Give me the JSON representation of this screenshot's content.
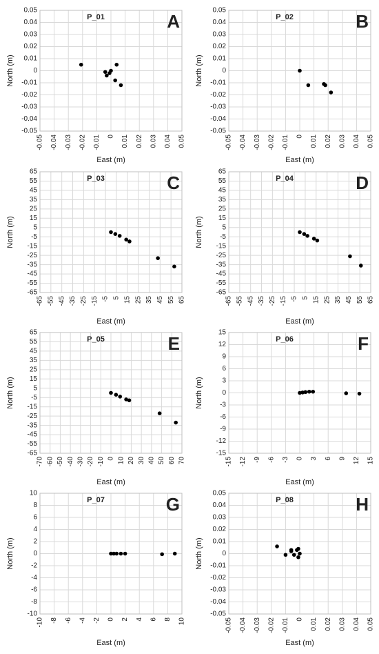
{
  "chart_data": [
    {
      "type": "scatter",
      "title": "P_01",
      "panel_letter": "A",
      "xlabel": "East (m)",
      "ylabel": "North (m)",
      "xlim": [
        -0.05,
        0.05
      ],
      "ylim": [
        -0.05,
        0.05
      ],
      "xticks": [
        "-0.05",
        "-0.04",
        "-0.03",
        "-0.02",
        "-0.01",
        "0",
        "0.01",
        "0.02",
        "0.03",
        "0.04",
        "0.05"
      ],
      "yticks": [
        "0.05",
        "0.04",
        "0.03",
        "0.02",
        "0.01",
        "0",
        "-0.01",
        "-0.02",
        "-0.03",
        "-0.04",
        "-0.05"
      ],
      "points": [
        [
          -0.021,
          0.005
        ],
        [
          -0.004,
          -0.001
        ],
        [
          -0.003,
          -0.004
        ],
        [
          -0.001,
          -0.002
        ],
        [
          0,
          0
        ],
        [
          0.004,
          0.005
        ],
        [
          0.003,
          -0.008
        ],
        [
          0.007,
          -0.012
        ]
      ],
      "grid": true
    },
    {
      "type": "scatter",
      "title": "P_02",
      "panel_letter": "B",
      "xlabel": "East (m)",
      "ylabel": "North (m)",
      "xlim": [
        -0.05,
        0.05
      ],
      "ylim": [
        -0.05,
        0.05
      ],
      "xticks": [
        "-0.05",
        "-0.04",
        "-0.03",
        "-0.02",
        "-0.01",
        "0",
        "0.01",
        "0.02",
        "0.03",
        "0.04",
        "0.05"
      ],
      "yticks": [
        "0.05",
        "0.04",
        "0.03",
        "0.02",
        "0.01",
        "0",
        "-0.01",
        "-0.02",
        "-0.03",
        "-0.04",
        "-0.05"
      ],
      "points": [
        [
          0,
          0
        ],
        [
          0.006,
          -0.012
        ],
        [
          0.017,
          -0.011
        ],
        [
          0.018,
          -0.012
        ],
        [
          0.022,
          -0.018
        ]
      ],
      "grid": true
    },
    {
      "type": "scatter",
      "title": "P_03",
      "panel_letter": "C",
      "xlabel": "East (m)",
      "ylabel": "North (m)",
      "xlim": [
        -65,
        65
      ],
      "ylim": [
        -65,
        65
      ],
      "xticks": [
        "-65",
        "-55",
        "-45",
        "-35",
        "-25",
        "-15",
        "-5",
        "5",
        "15",
        "25",
        "35",
        "45",
        "55",
        "65"
      ],
      "yticks": [
        "65",
        "55",
        "45",
        "35",
        "25",
        "15",
        "5",
        "-5",
        "-15",
        "-25",
        "-35",
        "-45",
        "-55",
        "-65"
      ],
      "points": [
        [
          0,
          0
        ],
        [
          4,
          -2
        ],
        [
          8,
          -4
        ],
        [
          14,
          -8
        ],
        [
          17,
          -10
        ],
        [
          43,
          -28
        ],
        [
          58,
          -37
        ]
      ],
      "grid": true
    },
    {
      "type": "scatter",
      "title": "P_04",
      "panel_letter": "D",
      "xlabel": "East (m)",
      "ylabel": "North (m)",
      "xlim": [
        -65,
        65
      ],
      "ylim": [
        -65,
        65
      ],
      "xticks": [
        "-65",
        "-55",
        "-45",
        "-35",
        "-25",
        "-15",
        "-5",
        "5",
        "15",
        "25",
        "35",
        "45",
        "55",
        "65"
      ],
      "yticks": [
        "65",
        "55",
        "45",
        "35",
        "25",
        "15",
        "5",
        "-5",
        "-15",
        "-25",
        "-35",
        "-45",
        "-55",
        "-65"
      ],
      "points": [
        [
          0,
          0
        ],
        [
          4,
          -2
        ],
        [
          7,
          -4
        ],
        [
          13,
          -7
        ],
        [
          16,
          -9
        ],
        [
          46,
          -26
        ],
        [
          56,
          -36
        ]
      ],
      "grid": true
    },
    {
      "type": "scatter",
      "title": "P_05",
      "panel_letter": "E",
      "xlabel": "East (m)",
      "ylabel": "North (m)",
      "xlim": [
        -70,
        70
      ],
      "ylim": [
        -65,
        65
      ],
      "xticks": [
        "-70",
        "-60",
        "-50",
        "-40",
        "-30",
        "-20",
        "-10",
        "0",
        "10",
        "20",
        "30",
        "40",
        "50",
        "60",
        "70"
      ],
      "yticks": [
        "65",
        "55",
        "45",
        "35",
        "25",
        "15",
        "5",
        "-5",
        "-15",
        "-25",
        "-35",
        "-45",
        "-55",
        "-65"
      ],
      "points": [
        [
          0,
          0
        ],
        [
          5,
          -2
        ],
        [
          9,
          -4
        ],
        [
          15,
          -7
        ],
        [
          18,
          -8
        ],
        [
          48,
          -22
        ],
        [
          64,
          -32
        ]
      ],
      "grid": true
    },
    {
      "type": "scatter",
      "title": "P_06",
      "panel_letter": "F",
      "xlabel": "East (m)",
      "ylabel": "North (m)",
      "xlim": [
        -15,
        15
      ],
      "ylim": [
        -15,
        15
      ],
      "xticks": [
        "-15",
        "-12",
        "-9",
        "-6",
        "-3",
        "0",
        "3",
        "6",
        "9",
        "12",
        "15"
      ],
      "yticks": [
        "15",
        "12",
        "9",
        "6",
        "3",
        "0",
        "-3",
        "-6",
        "-9",
        "-12",
        "-15"
      ],
      "points": [
        [
          0,
          0
        ],
        [
          0.6,
          0.1
        ],
        [
          1.2,
          0.2
        ],
        [
          2.0,
          0.3
        ],
        [
          2.8,
          0.3
        ],
        [
          9.8,
          -0.1
        ],
        [
          12.6,
          -0.2
        ]
      ],
      "grid": true
    },
    {
      "type": "scatter",
      "title": "P_07",
      "panel_letter": "G",
      "xlabel": "East (m)",
      "ylabel": "North (m)",
      "xlim": [
        -10,
        10
      ],
      "ylim": [
        -10,
        10
      ],
      "xticks": [
        "-10",
        "-8",
        "-6",
        "-4",
        "-2",
        "0",
        "2",
        "4",
        "6",
        "8",
        "10"
      ],
      "yticks": [
        "10",
        "8",
        "6",
        "4",
        "2",
        "0",
        "-2",
        "-4",
        "-6",
        "-8",
        "-10"
      ],
      "points": [
        [
          0,
          0
        ],
        [
          0.4,
          0
        ],
        [
          0.8,
          0
        ],
        [
          1.4,
          0
        ],
        [
          2.0,
          0
        ],
        [
          7.2,
          -0.1
        ],
        [
          9.0,
          0
        ]
      ],
      "grid": true
    },
    {
      "type": "scatter",
      "title": "P_08",
      "panel_letter": "H",
      "xlabel": "East (m)",
      "ylabel": "North (m)",
      "xlim": [
        -0.05,
        0.05
      ],
      "ylim": [
        -0.05,
        0.05
      ],
      "xticks": [
        "-0.05",
        "-0.04",
        "-0.03",
        "-0.02",
        "-0.01",
        "0",
        "0.01",
        "0.02",
        "0.03",
        "0.04",
        "0.05"
      ],
      "yticks": [
        "0.05",
        "0.04",
        "0.03",
        "0.02",
        "0.01",
        "0",
        "-0.01",
        "-0.02",
        "-0.03",
        "-0.04",
        "-0.05"
      ],
      "points": [
        [
          -0.016,
          0.006
        ],
        [
          -0.01,
          -0.001
        ],
        [
          -0.006,
          0.003
        ],
        [
          -0.006,
          0.002
        ],
        [
          -0.004,
          -0.001
        ],
        [
          -0.002,
          0.003
        ],
        [
          -0.001,
          0.004
        ],
        [
          -0.001,
          -0.003
        ],
        [
          0,
          0
        ]
      ],
      "grid": true
    }
  ]
}
